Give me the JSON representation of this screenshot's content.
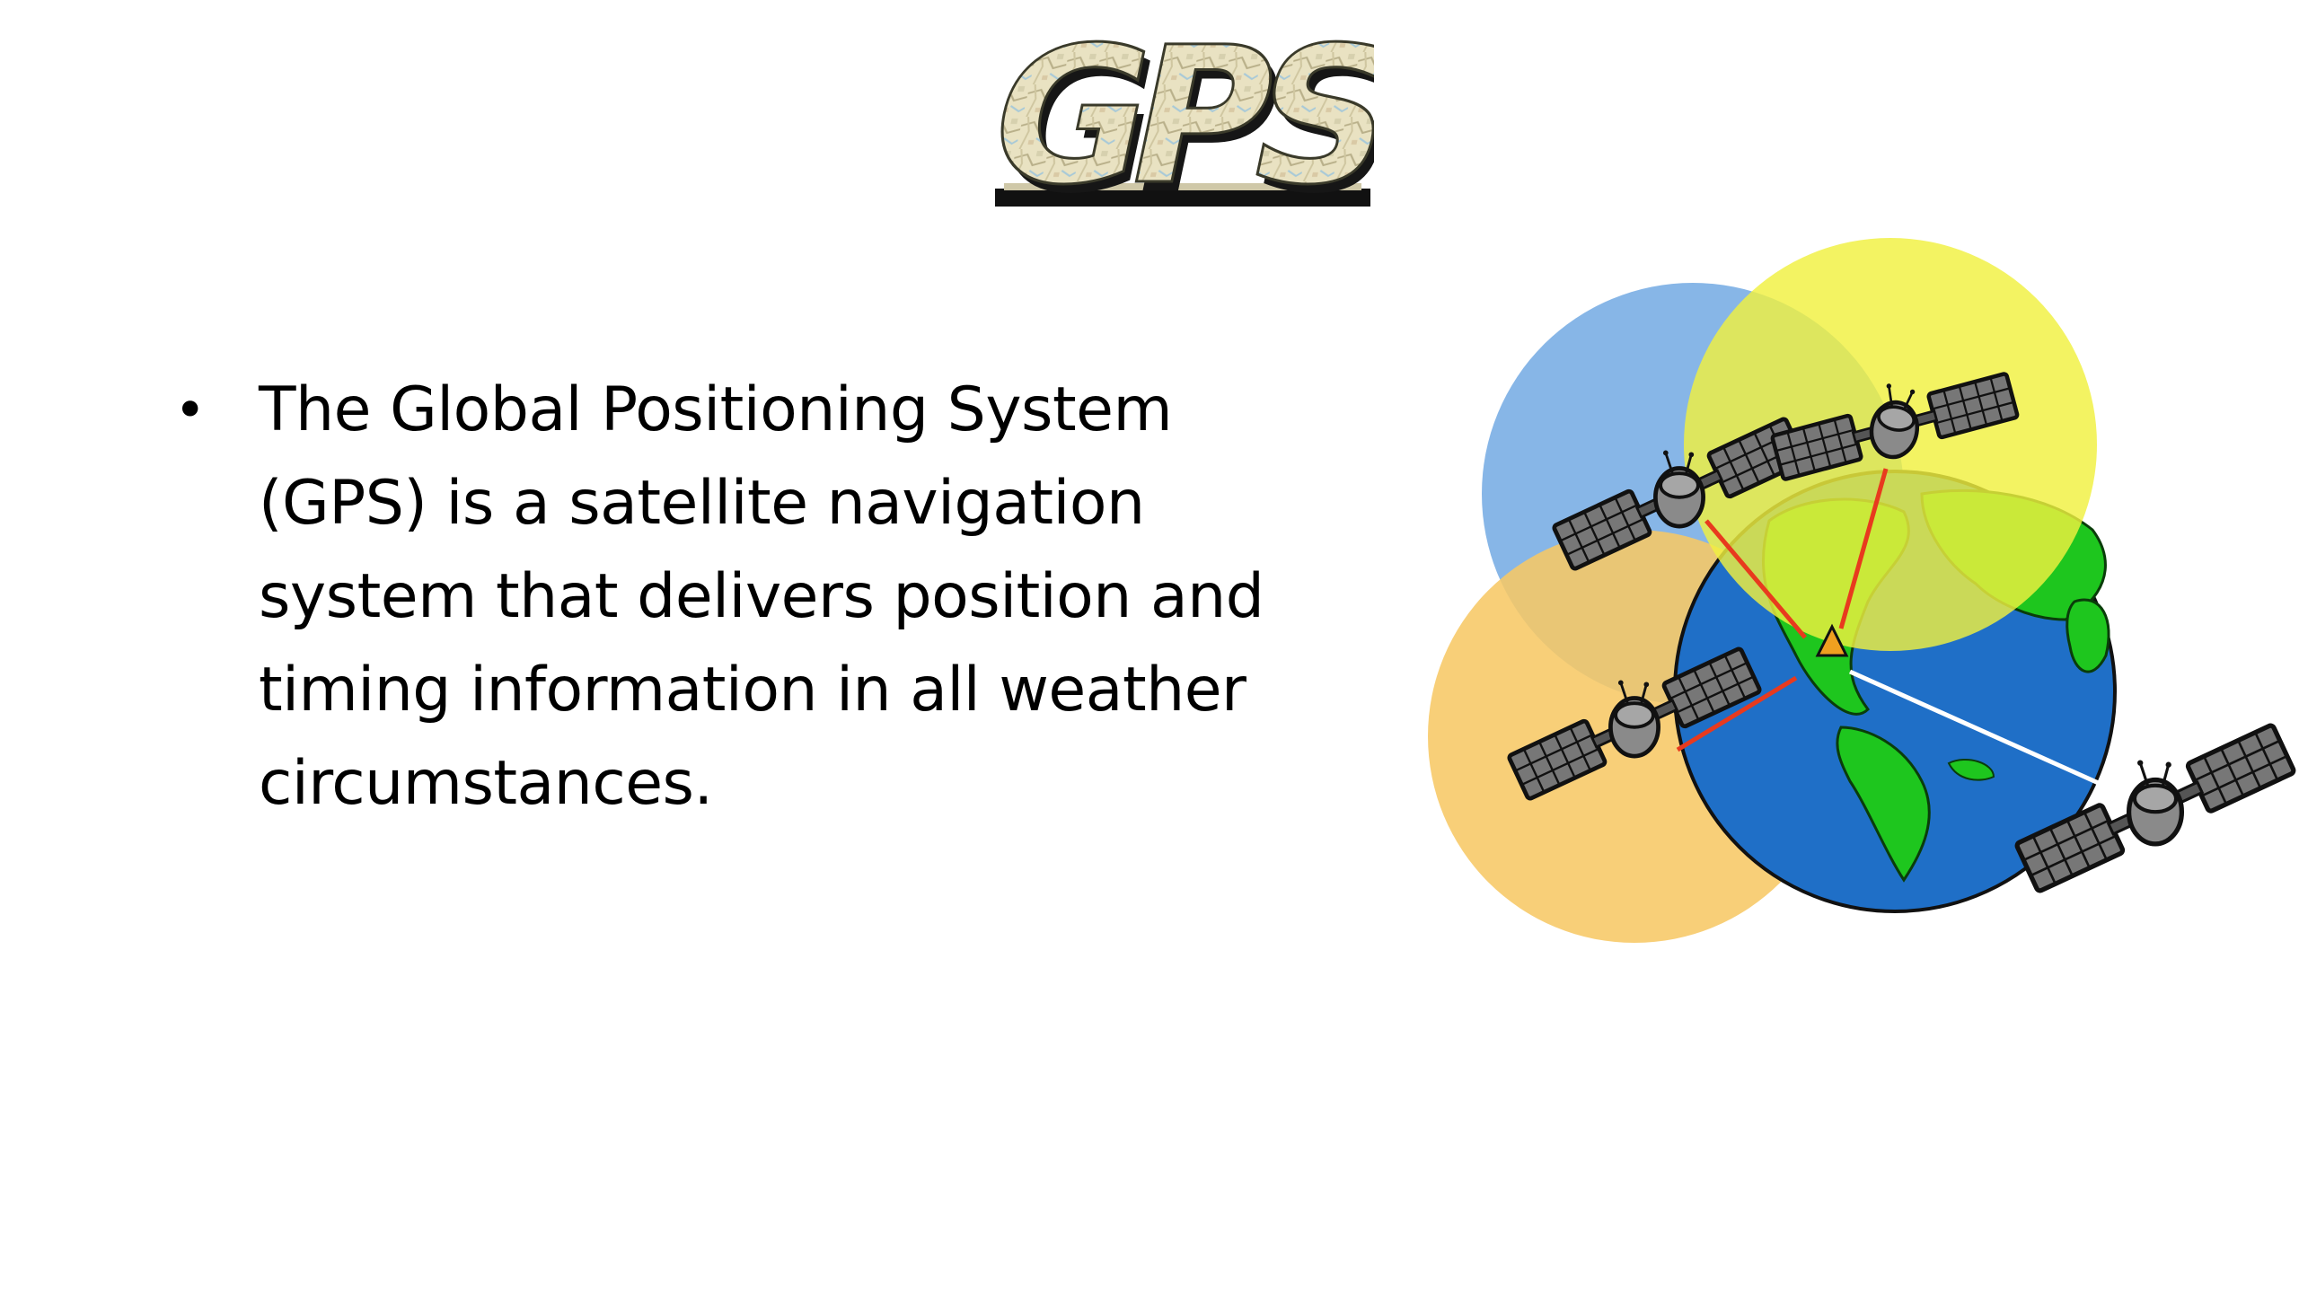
{
  "slide": {
    "logo_text": "GPS",
    "bullets": [
      {
        "symbol": "•",
        "lines": [
          "The Global Positioning System",
          "(GPS) is a satellite navigation",
          "system that delivers position and",
          "timing information in all weather",
          "circumstances."
        ]
      }
    ]
  },
  "illustration": {
    "coverage_colors": {
      "blue": "#7aaee4",
      "yellow": "#f0f040",
      "orange": "#f7c865"
    },
    "earth_colors": {
      "ocean": "#1f6fc7",
      "land": "#1ec61e"
    },
    "signal_colors": {
      "red": "#e83a1e",
      "white": "#ffffff"
    },
    "receiver_color": "#f0a020",
    "satellite_icon": "satellite-icon"
  }
}
